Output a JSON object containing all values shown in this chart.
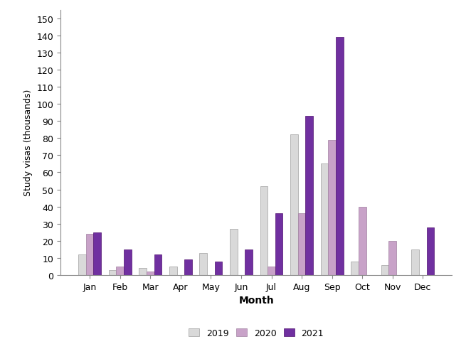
{
  "months": [
    "Jan",
    "Feb",
    "Mar",
    "Apr",
    "May",
    "Jun",
    "Jul",
    "Aug",
    "Sep",
    "Oct",
    "Nov",
    "Dec"
  ],
  "data_2019": [
    12,
    3,
    4,
    5,
    13,
    27,
    52,
    82,
    65,
    8,
    6,
    15
  ],
  "data_2020": [
    24,
    5,
    2,
    0,
    0,
    0,
    5,
    36,
    79,
    40,
    20,
    0
  ],
  "data_2021": [
    25,
    15,
    12,
    9,
    8,
    15,
    36,
    93,
    139,
    0,
    0,
    28
  ],
  "color_2019": "#d9d9d9",
  "color_2020": "#c8a2c8",
  "color_2021": "#7030a0",
  "edgecolor_2019": "#a0a0a0",
  "edgecolor_2020": "#a080a0",
  "edgecolor_2021": "#501070",
  "ylabel": "Study visas (thousands)",
  "xlabel": "Month",
  "ylim": [
    0,
    155
  ],
  "yticks": [
    0,
    10,
    20,
    30,
    40,
    50,
    60,
    70,
    80,
    90,
    100,
    110,
    120,
    130,
    140,
    150
  ],
  "legend_labels": [
    "2019",
    "2020",
    "2021"
  ],
  "title_color": "#000000",
  "background_color": "#ffffff",
  "bar_width": 0.25
}
